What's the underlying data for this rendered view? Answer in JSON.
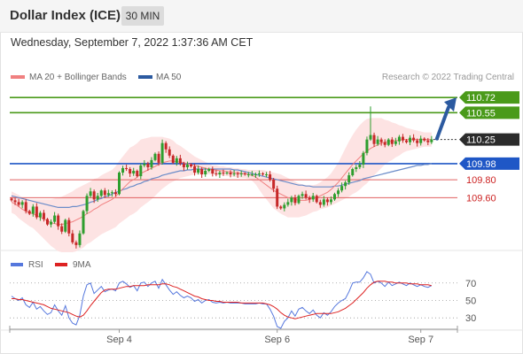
{
  "header": {
    "title": "Dollar Index (ICE)",
    "timeframe": "30 MIN"
  },
  "datetime": "Wednesday, September 7, 2022 1:37:36 AM CET",
  "colors": {
    "ma20": "#f08080",
    "ma50": "#2c5aa0",
    "band_fill": "#fde0e0",
    "up": "#2e9e2e",
    "down": "#c62828",
    "resistance": "#4a9a1a",
    "pivot": "#1f57c6",
    "support": "#e06060",
    "arrow": "#2c5aa0",
    "rsi": "#5577dd",
    "rsi_ma": "#dd2222"
  },
  "chart_data": [
    {
      "type": "candlestick",
      "legend": [
        {
          "label": "MA 20 + Bollinger Bands",
          "color": "#f08080"
        },
        {
          "label": "MA 50",
          "color": "#2c5aa0"
        }
      ],
      "legend_position": "top-left",
      "watermark": "Research © 2022 Trading Central",
      "ylim": [
        108.96,
        110.86
      ],
      "last_price": "110.25",
      "levels": [
        {
          "label": "110.72",
          "value": 110.72,
          "kind": "resistance"
        },
        {
          "label": "110.55",
          "value": 110.55,
          "kind": "resistance"
        },
        {
          "label": "109.98",
          "value": 109.98,
          "kind": "pivot"
        },
        {
          "label": "109.80",
          "value": 109.8,
          "kind": "support"
        },
        {
          "label": "109.60",
          "value": 109.6,
          "kind": "support"
        }
      ],
      "x_ticks": [
        "Sep 4",
        "Sep 6",
        "Sep 7"
      ],
      "projection": {
        "from": 110.25,
        "to": 110.72
      },
      "close": [
        109.57,
        109.55,
        109.52,
        109.55,
        109.45,
        109.42,
        109.5,
        109.38,
        109.43,
        109.36,
        109.3,
        109.33,
        109.4,
        109.28,
        109.22,
        109.35,
        109.2,
        109.1,
        109.07,
        109.2,
        109.45,
        109.62,
        109.67,
        109.58,
        109.62,
        109.68,
        109.63,
        109.65,
        109.66,
        109.64,
        109.88,
        109.93,
        109.92,
        109.87,
        109.9,
        109.84,
        109.96,
        109.98,
        109.94,
        110.02,
        110.09,
        109.99,
        110.21,
        110.14,
        110.07,
        109.99,
        110.04,
        109.98,
        109.94,
        109.97,
        109.95,
        109.88,
        109.92,
        109.86,
        109.9,
        109.92,
        109.87,
        109.86,
        109.88,
        109.87,
        109.88,
        109.86,
        109.87,
        109.86,
        109.87,
        109.86,
        109.86,
        109.86,
        109.86,
        109.87,
        109.86,
        109.86,
        109.8,
        109.7,
        109.5,
        109.48,
        109.52,
        109.55,
        109.6,
        109.54,
        109.62,
        109.64,
        109.6,
        109.58,
        109.62,
        109.55,
        109.52,
        109.58,
        109.55,
        109.58,
        109.64,
        109.68,
        109.73,
        109.77,
        109.85,
        109.92,
        109.94,
        109.97,
        110.1,
        110.25,
        110.3,
        110.2,
        110.25,
        110.22,
        110.19,
        110.25,
        110.2,
        110.23,
        110.28,
        110.24,
        110.22,
        110.27,
        110.24,
        110.21,
        110.26,
        110.24,
        110.22,
        110.25
      ],
      "ma20": [
        109.55,
        109.53,
        109.5,
        109.47,
        109.45,
        109.43,
        109.42,
        109.4,
        109.38,
        109.36,
        109.34,
        109.32,
        109.31,
        109.3,
        109.3,
        109.31,
        109.32,
        109.33,
        109.35,
        109.37,
        109.39,
        109.42,
        109.44,
        109.47,
        109.49,
        109.52,
        109.54,
        109.56,
        109.58,
        109.61,
        109.66,
        109.7,
        109.74,
        109.78,
        109.8,
        109.83,
        109.87,
        109.89,
        109.91,
        109.93,
        109.95,
        109.97,
        109.99,
        110.0,
        110.01,
        110.01,
        110.0,
        110.0,
        109.99,
        109.98,
        109.97,
        109.96,
        109.95,
        109.94,
        109.93,
        109.92,
        109.91,
        109.91,
        109.9,
        109.9,
        109.89,
        109.89,
        109.88,
        109.88,
        109.87,
        109.87,
        109.86,
        109.85,
        109.83,
        109.8,
        109.77,
        109.74,
        109.71,
        109.68,
        109.66,
        109.64,
        109.62,
        109.6,
        109.59,
        109.58,
        109.57,
        109.57,
        109.57,
        109.58,
        109.59,
        109.6,
        109.62,
        109.64,
        109.66,
        109.69,
        109.73,
        109.77,
        109.82,
        109.87,
        109.92,
        109.97,
        110.01,
        110.05,
        110.09,
        110.12,
        110.15,
        110.17,
        110.19,
        110.21,
        110.22,
        110.23,
        110.23,
        110.24,
        110.24,
        110.25,
        110.25,
        110.25,
        110.25,
        110.25,
        110.25,
        110.25,
        110.25,
        110.25
      ],
      "ma50": [
        109.62,
        109.61,
        109.6,
        109.59,
        109.58,
        109.57,
        109.56,
        109.55,
        109.54,
        109.53,
        109.52,
        109.51,
        109.5,
        109.49,
        109.49,
        109.49,
        109.49,
        109.5,
        109.5,
        109.51,
        109.52,
        109.53,
        109.55,
        109.56,
        109.58,
        109.59,
        109.61,
        109.62,
        109.64,
        109.66,
        109.67,
        109.69,
        109.7,
        109.72,
        109.73,
        109.75,
        109.76,
        109.78,
        109.79,
        109.81,
        109.82,
        109.83,
        109.85,
        109.86,
        109.87,
        109.88,
        109.89,
        109.9,
        109.9,
        109.91,
        109.91,
        109.92,
        109.92,
        109.92,
        109.92,
        109.92,
        109.92,
        109.92,
        109.92,
        109.92,
        109.92,
        109.92,
        109.91,
        109.91,
        109.9,
        109.89,
        109.88,
        109.87,
        109.86,
        109.85,
        109.84,
        109.83,
        109.82,
        109.81,
        109.8,
        109.79,
        109.78,
        109.77,
        109.76,
        109.75,
        109.74,
        109.74,
        109.73,
        109.73,
        109.72,
        109.72,
        109.72,
        109.72,
        109.72,
        109.72,
        109.73,
        109.73,
        109.74,
        109.75,
        109.76,
        109.77,
        109.78,
        109.79,
        109.81,
        109.82,
        109.83,
        109.84,
        109.85,
        109.86,
        109.87,
        109.88,
        109.89,
        109.9,
        109.91,
        109.92,
        109.93,
        109.94,
        109.95,
        109.96,
        109.96,
        109.97,
        109.97,
        109.98
      ],
      "band_width": [
        0.12,
        0.12,
        0.13,
        0.13,
        0.14,
        0.15,
        0.16,
        0.18,
        0.2,
        0.22,
        0.24,
        0.26,
        0.28,
        0.3,
        0.31,
        0.32,
        0.33,
        0.34,
        0.35,
        0.35,
        0.35,
        0.34,
        0.34,
        0.34,
        0.33,
        0.33,
        0.33,
        0.33,
        0.33,
        0.34,
        0.35,
        0.36,
        0.37,
        0.38,
        0.38,
        0.38,
        0.38,
        0.37,
        0.36,
        0.35,
        0.33,
        0.31,
        0.29,
        0.27,
        0.25,
        0.23,
        0.2,
        0.18,
        0.16,
        0.14,
        0.12,
        0.1,
        0.09,
        0.08,
        0.07,
        0.06,
        0.05,
        0.05,
        0.05,
        0.05,
        0.05,
        0.05,
        0.05,
        0.05,
        0.05,
        0.05,
        0.05,
        0.06,
        0.08,
        0.11,
        0.14,
        0.16,
        0.18,
        0.2,
        0.21,
        0.22,
        0.22,
        0.22,
        0.21,
        0.2,
        0.19,
        0.18,
        0.17,
        0.16,
        0.15,
        0.15,
        0.15,
        0.16,
        0.17,
        0.18,
        0.2,
        0.22,
        0.25,
        0.28,
        0.31,
        0.33,
        0.35,
        0.36,
        0.36,
        0.36,
        0.34,
        0.32,
        0.3,
        0.28,
        0.25,
        0.23,
        0.21,
        0.19,
        0.17,
        0.15,
        0.13,
        0.12,
        0.11,
        0.1,
        0.09,
        0.08,
        0.08,
        0.08
      ]
    },
    {
      "type": "line",
      "legend": [
        {
          "label": "RSI",
          "color": "#5577dd"
        },
        {
          "label": "9MA",
          "color": "#dd2222"
        }
      ],
      "legend_position": "top-left",
      "ylim": [
        17,
        85
      ],
      "y_ticks": [
        70,
        50,
        30
      ],
      "rsi": [
        55,
        52,
        50,
        53,
        45,
        42,
        48,
        40,
        43,
        38,
        34,
        36,
        45,
        38,
        33,
        44,
        30,
        24,
        22,
        33,
        55,
        68,
        70,
        58,
        62,
        66,
        60,
        62,
        63,
        61,
        70,
        72,
        69,
        65,
        67,
        61,
        70,
        71,
        66,
        70,
        72,
        64,
        74,
        68,
        62,
        57,
        60,
        56,
        53,
        55,
        53,
        49,
        51,
        47,
        50,
        51,
        48,
        47,
        48,
        47,
        48,
        47,
        47,
        47,
        47,
        46,
        46,
        46,
        46,
        47,
        46,
        46,
        40,
        32,
        20,
        18,
        26,
        30,
        38,
        32,
        40,
        42,
        38,
        35,
        39,
        33,
        30,
        36,
        33,
        37,
        43,
        47,
        50,
        52,
        60,
        70,
        71,
        71,
        76,
        83,
        80,
        70,
        72,
        70,
        66,
        71,
        67,
        69,
        71,
        69,
        67,
        70,
        68,
        66,
        68,
        66,
        65,
        67
      ],
      "rsi_ma": [
        52,
        52,
        51,
        51,
        50,
        49,
        48,
        47,
        46,
        45,
        43,
        41,
        40,
        39,
        38,
        37,
        36,
        34,
        32,
        31,
        33,
        38,
        44,
        49,
        54,
        59,
        62,
        63,
        63,
        63,
        64,
        65,
        66,
        66,
        67,
        67,
        67,
        67,
        68,
        68,
        68,
        68,
        69,
        69,
        68,
        66,
        65,
        63,
        61,
        59,
        57,
        55,
        54,
        52,
        51,
        50,
        50,
        49,
        49,
        48,
        48,
        48,
        48,
        48,
        47,
        47,
        47,
        47,
        47,
        47,
        47,
        46,
        45,
        43,
        40,
        36,
        33,
        31,
        30,
        29,
        30,
        31,
        32,
        33,
        34,
        35,
        35,
        35,
        35,
        35,
        36,
        37,
        39,
        41,
        44,
        47,
        51,
        55,
        59,
        64,
        68,
        71,
        72,
        72,
        72,
        71,
        71,
        70,
        70,
        70,
        70,
        69,
        69,
        69,
        68,
        68,
        68,
        67
      ]
    }
  ]
}
